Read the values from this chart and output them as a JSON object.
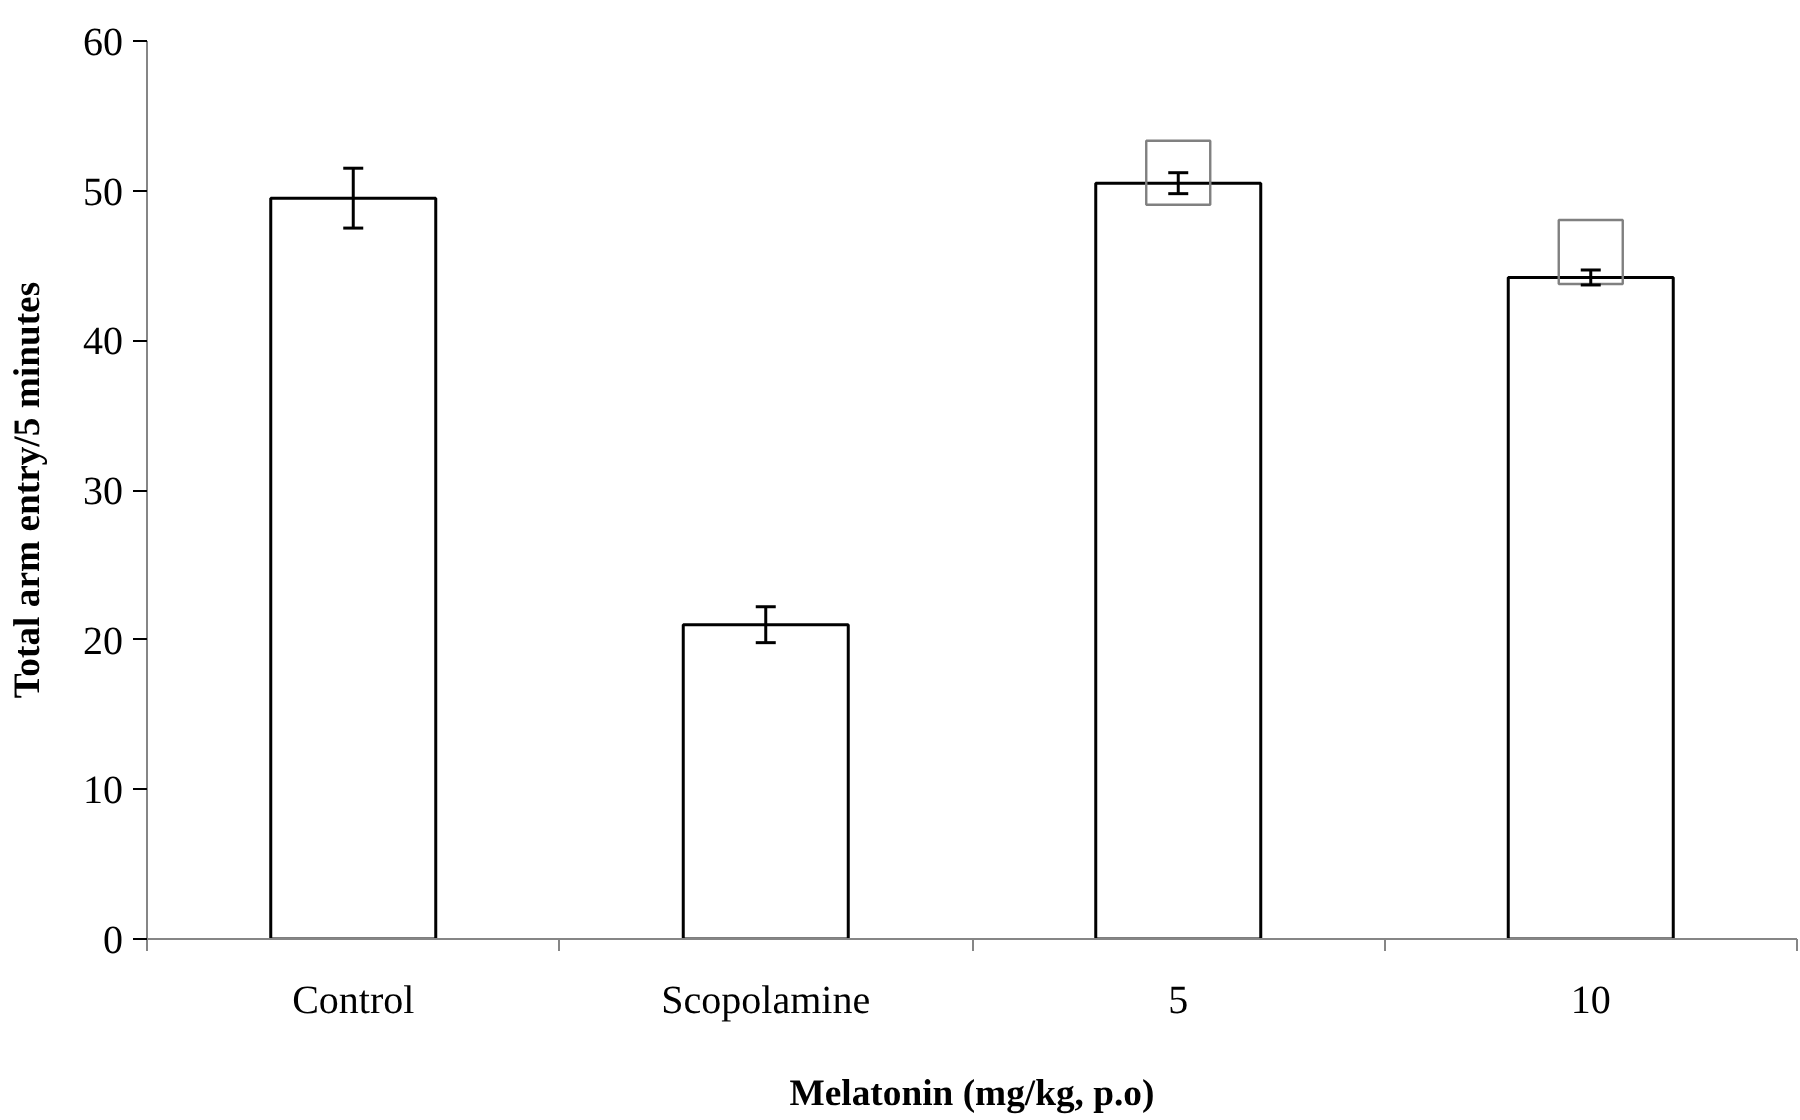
{
  "chart_data": {
    "type": "bar",
    "xlabel": "Melatonin (mg/kg, p.o)",
    "ylabel": "Total arm entry/5 minutes",
    "categories": [
      "Control",
      "Scopolamine",
      "5",
      "10"
    ],
    "series": [
      {
        "color": "#ffffff",
        "values": [
          49.5,
          21.0,
          50.5,
          44.2
        ],
        "errors": [
          2.0,
          1.2,
          0.7,
          0.5
        ]
      },
      {
        "type": "scatter",
        "color": "#808080",
        "marker": "square",
        "x": [
          "5",
          "10"
        ],
        "values": [
          51.2,
          45.9
        ]
      }
    ],
    "ylim": [
      0,
      60
    ],
    "yticks": [
      0,
      10,
      20,
      30,
      40,
      50,
      60
    ],
    "grid": false
  }
}
